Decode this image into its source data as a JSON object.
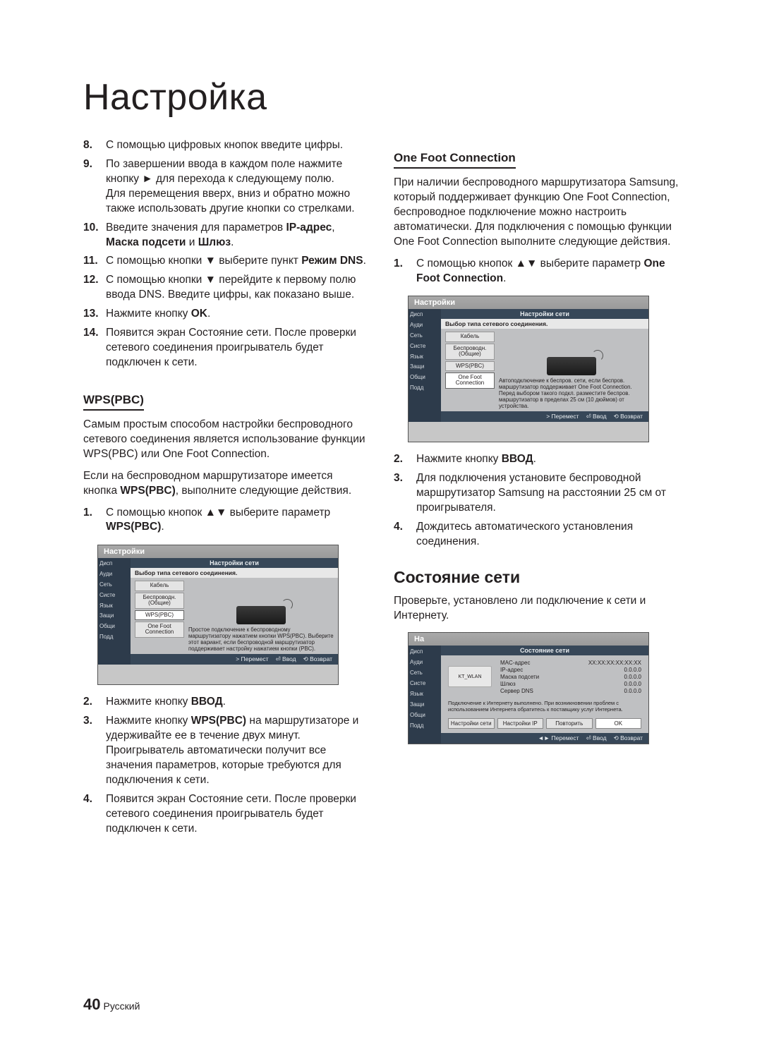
{
  "page": {
    "title": "Настройка",
    "number": "40",
    "lang": "Русский"
  },
  "left": {
    "steps_top": [
      {
        "n": "8.",
        "html": "С помощью цифровых кнопок введите цифры."
      },
      {
        "n": "9.",
        "html": "По завершении ввода в каждом поле нажмите кнопку ► для перехода к следующему полю.<br>Для перемещения вверх, вниз и обратно можно также использовать другие кнопки со стрелками."
      },
      {
        "n": "10.",
        "html": "Введите значения для параметров <span class=\"bold\">IP-адрес</span>, <span class=\"bold\">Маска подсети</span> и <span class=\"bold\">Шлюз</span>."
      },
      {
        "n": "11.",
        "html": "С помощью кнопки ▼ выберите пункт <span class=\"bold\">Режим DNS</span>."
      },
      {
        "n": "12.",
        "html": "С помощью кнопки ▼ перейдите к первому полю ввода DNS. Введите цифры, как показано выше."
      },
      {
        "n": "13.",
        "html": "Нажмите кнопку <span class=\"bold\">OK</span>."
      },
      {
        "n": "14.",
        "html": "Появится экран Состояние сети. После проверки сетевого соединения проигрыватель будет подключен к сети."
      }
    ],
    "wps_heading": "WPS(PBC)",
    "wps_p1": "Самым простым способом настройки беспроводного сетевого соединения является использование функции WPS(PBC) или One Foot Connection.",
    "wps_p2_pre": "Если на беспроводном маршрутизаторе имеется кнопка ",
    "wps_p2_bold": "WPS(PBC)",
    "wps_p2_post": ", выполните следующие действия.",
    "wps_steps": [
      {
        "n": "1.",
        "html": "С помощью кнопок ▲▼ выберите параметр <span class=\"bold\">WPS(PBC)</span>."
      }
    ],
    "ui1": {
      "header": "Настройки",
      "title": "Настройки сети",
      "sub": "Выбор типа сетевого соединения.",
      "side": [
        "Дисп",
        "Ауди",
        "Сеть",
        "Систе",
        "Язык",
        "Защи",
        "Общи",
        "Подд"
      ],
      "opts": [
        "Кабель",
        "Беспроводн. (Общие)",
        "WPS(PBC)",
        "One Foot Connection"
      ],
      "sel_index": 2,
      "desc": "Простое подключение к беспроводному маршрутизатору нажатием кнопки WPS(PBC). Выберите этот вариант, если беспроводной маршрутизатор поддерживает настройку нажатием кнопки (PBC).",
      "footer": [
        "> Перемест",
        "⏎ Ввод",
        "⟲ Возврат"
      ]
    },
    "wps_steps2": [
      {
        "n": "2.",
        "html": "Нажмите кнопку <span class=\"bold\">ВВОД</span>."
      },
      {
        "n": "3.",
        "html": "Нажмите кнопку <span class=\"bold\">WPS(PBC)</span> на маршрутизаторе и удерживайте ее в течение двух минут. Проигрыватель автоматически получит все значения параметров, которые требуются для подключения к сети."
      },
      {
        "n": "4.",
        "html": "Появится экран Состояние сети. После проверки сетевого соединения проигрыватель будет подключен к сети."
      }
    ]
  },
  "right": {
    "ofc_heading": "One Foot Connection",
    "ofc_p": "При наличии беспроводного маршрутизатора Samsung, который поддерживает функцию One Foot Connection, беспроводное подключение можно настроить автоматически. Для подключения с помощью функции One Foot Connection выполните следующие действия.",
    "ofc_steps1": [
      {
        "n": "1.",
        "html": "С помощью кнопок ▲▼ выберите параметр <span class=\"bold\">One Foot Connection</span>."
      }
    ],
    "ui2": {
      "header": "Настройки",
      "title": "Настройки сети",
      "sub": "Выбор типа сетевого соединения.",
      "side": [
        "Дисп",
        "Ауди",
        "Сеть",
        "Систе",
        "Язык",
        "Защи",
        "Общи",
        "Подд"
      ],
      "opts": [
        "Кабель",
        "Беспроводн. (Общие)",
        "WPS(PBC)",
        "One Foot Connection"
      ],
      "sel_index": 3,
      "desc": "Автоподключение к беспров. сети, если беспров. маршрутизатор поддерживает One Foot Connection. Перед выбором такого подкл. разместите беспров. маршрутизатор в пределах 25 см (10 дюймов) от устройства.",
      "footer": [
        "> Перемест",
        "⏎ Ввод",
        "⟲ Возврат"
      ]
    },
    "ofc_steps2": [
      {
        "n": "2.",
        "html": "Нажмите кнопку <span class=\"bold\">ВВОД</span>."
      },
      {
        "n": "3.",
        "html": "Для подключения установите беспроводной маршрутизатор Samsung на расстоянии 25 см от проигрывателя."
      },
      {
        "n": "4.",
        "html": "Дождитесь автоматического установления соединения."
      }
    ],
    "status_heading": "Состояние сети",
    "status_p": "Проверьте, установлено ли подключение к сети и Интернету.",
    "ui3": {
      "header": "На",
      "title": "Состояние сети",
      "side": [
        "Дисп",
        "Ауди",
        "Сеть",
        "Систе",
        "Язык",
        "Защи",
        "Общи",
        "Подд"
      ],
      "icon": "KT_WLAN",
      "kv": [
        [
          "MAC-адрес",
          "XX:XX:XX:XX:XX:XX"
        ],
        [
          "IP-адрес",
          "0.0.0.0"
        ],
        [
          "Маска подсети",
          "0.0.0.0"
        ],
        [
          "Шлюз",
          "0.0.0.0"
        ],
        [
          "Сервер DNS",
          "0.0.0.0"
        ]
      ],
      "msg": "Подключение к Интернету выполнено.\nПри возникновении проблем с использованием Интернета обратитесь к поставщику услуг Интернета.",
      "btns": [
        "Настройки сети",
        "Настройки IP",
        "Повторить",
        "OK"
      ],
      "btn_active": 3,
      "footer": [
        "◄► Перемест",
        "⏎ Ввод",
        "⟲ Возврат"
      ]
    }
  }
}
